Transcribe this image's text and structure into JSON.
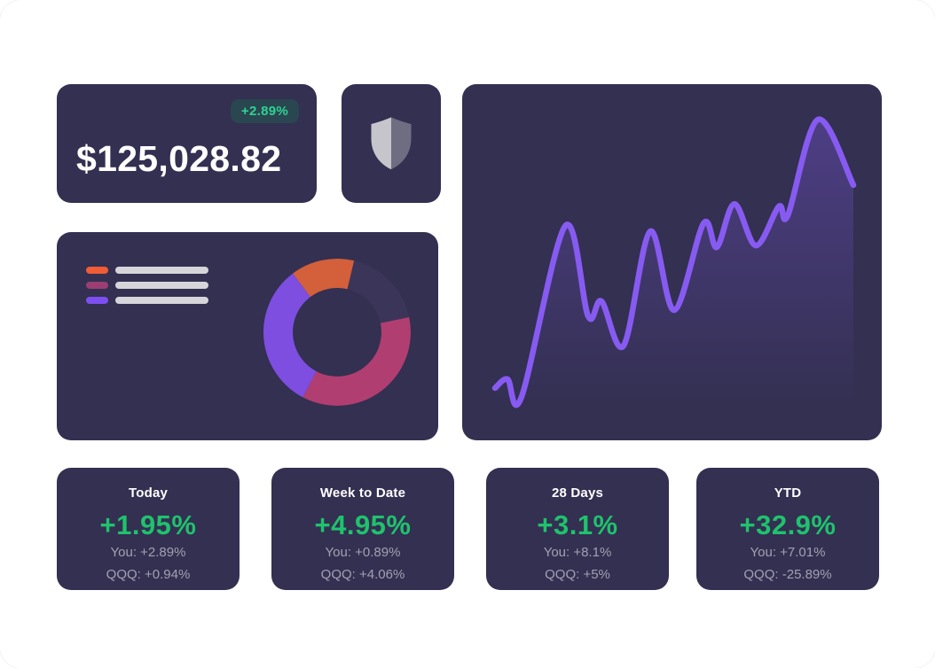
{
  "theme": {
    "page_bg": "#ffffff",
    "card_bg": "#333051",
    "green": "#1fc26d",
    "badge_bg": "#2a4650",
    "badge_text": "#2ed392",
    "muted_text": "#a3a0b3",
    "white": "#ffffff"
  },
  "balance_card": {
    "amount": "$125,028.82",
    "change_badge": "+2.89%"
  },
  "security_card": {
    "icon": "shield-icon",
    "shield_left_color": "#c6c5cc",
    "shield_right_color": "#6f6d81"
  },
  "allocation_card": {
    "legend": [
      {
        "name": "series-1",
        "color": "#f05c35"
      },
      {
        "name": "series-2",
        "color": "#9c3e73"
      },
      {
        "name": "series-3",
        "color": "#7e4ff0"
      }
    ]
  },
  "chart_data": [
    {
      "id": "performance-line",
      "type": "line",
      "title": "",
      "axes": "none",
      "grid": false,
      "legend": "none",
      "line_color": "#875bf2",
      "fill_opacity_top": 0.32,
      "x": [
        0,
        0.035,
        0.074,
        0.196,
        0.26,
        0.297,
        0.359,
        0.433,
        0.5,
        0.582,
        0.619,
        0.668,
        0.728,
        0.792,
        0.817,
        0.901,
        1
      ],
      "y": [
        0.032,
        0.064,
        0,
        0.617,
        0.291,
        0.345,
        0.185,
        0.597,
        0.313,
        0.626,
        0.54,
        0.696,
        0.546,
        0.687,
        0.655,
        1,
        0.764
      ]
    },
    {
      "id": "allocation-donut",
      "type": "donut",
      "title": "",
      "start_angle_deg": -37,
      "segments": [
        {
          "label": "segment-orange",
          "color": "#d35f3b",
          "percent": 14
        },
        {
          "label": "segment-dark",
          "color": "#3b3659",
          "percent": 18
        },
        {
          "label": "segment-magenta",
          "color": "#b13e71",
          "percent": 36
        },
        {
          "label": "segment-purple",
          "color": "#7d4ee0",
          "percent": 32
        }
      ]
    }
  ],
  "stat_cards": [
    {
      "label": "Today",
      "value": "+1.95%",
      "you": "You: +2.89%",
      "benchmark": "QQQ: +0.94%"
    },
    {
      "label": "Week to Date",
      "value": "+4.95%",
      "you": "You: +0.89%",
      "benchmark": "QQQ: +4.06%"
    },
    {
      "label": "28 Days",
      "value": "+3.1%",
      "you": "You: +8.1%",
      "benchmark": "QQQ: +5%"
    },
    {
      "label": "YTD",
      "value": "+32.9%",
      "you": "You: +7.01%",
      "benchmark": "QQQ: -25.89%"
    }
  ]
}
